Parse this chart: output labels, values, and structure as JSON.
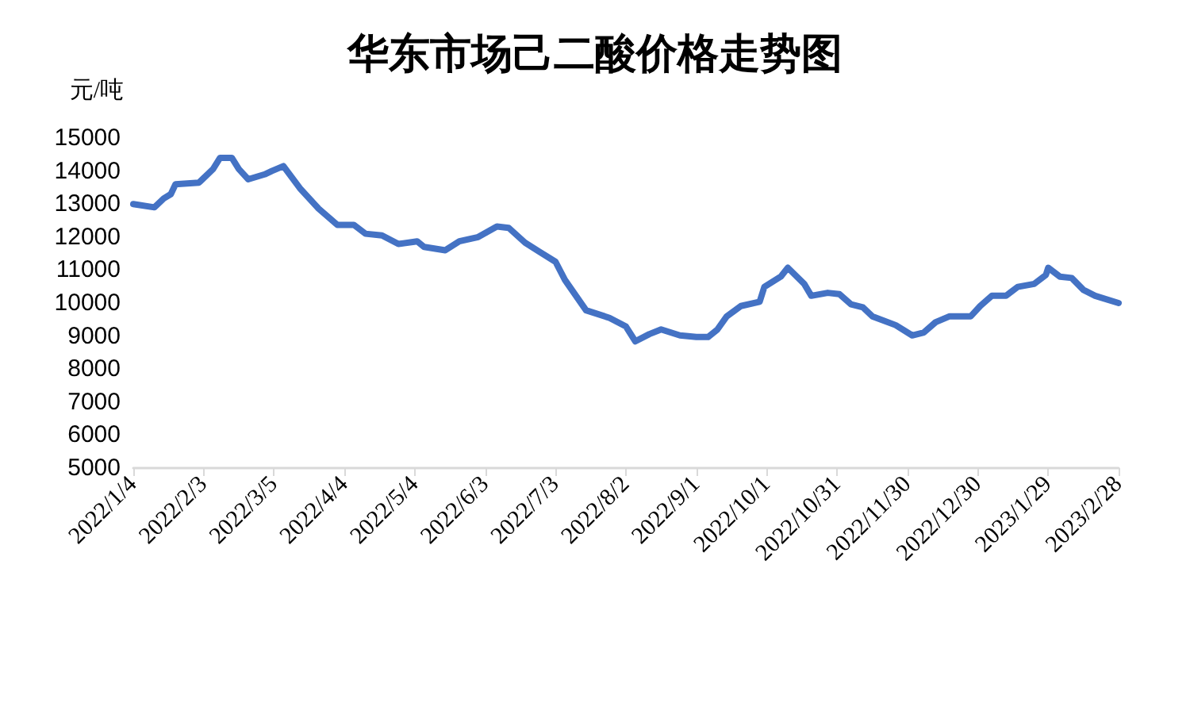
{
  "chart_data": {
    "type": "line",
    "title": "华东市场己二酸价格走势图",
    "ylabel": "元/吨",
    "x": [
      "2022-01-04",
      "2022-01-13",
      "2022-01-17",
      "2022-01-20",
      "2022-01-22",
      "2022-02-01",
      "2022-02-07",
      "2022-02-10",
      "2022-02-15",
      "2022-02-18",
      "2022-02-22",
      "2022-03-01",
      "2022-03-04",
      "2022-03-09",
      "2022-03-16",
      "2022-03-24",
      "2022-04-01",
      "2022-04-08",
      "2022-04-13",
      "2022-04-20",
      "2022-04-27",
      "2022-05-05",
      "2022-05-08",
      "2022-05-17",
      "2022-05-23",
      "2022-05-31",
      "2022-06-08",
      "2022-06-13",
      "2022-06-20",
      "2022-06-26",
      "2022-07-03",
      "2022-07-07",
      "2022-07-16",
      "2022-07-26",
      "2022-08-02",
      "2022-08-06",
      "2022-08-12",
      "2022-08-17",
      "2022-08-25",
      "2022-09-01",
      "2022-09-06",
      "2022-09-10",
      "2022-09-14",
      "2022-09-20",
      "2022-09-28",
      "2022-09-30",
      "2022-10-07",
      "2022-10-10",
      "2022-10-17",
      "2022-10-20",
      "2022-10-27",
      "2022-11-01",
      "2022-11-06",
      "2022-11-11",
      "2022-11-15",
      "2022-11-25",
      "2022-12-02",
      "2022-12-07",
      "2022-12-12",
      "2022-12-18",
      "2022-12-27",
      "2022-12-31",
      "2023-01-05",
      "2023-01-11",
      "2023-01-16",
      "2023-01-23",
      "2023-01-28",
      "2023-01-29",
      "2023-02-03",
      "2023-02-08",
      "2023-02-13",
      "2023-02-18",
      "2023-02-28"
    ],
    "series": [
      {
        "color": "#4472c4",
        "values": [
          13000,
          12900,
          13170,
          13300,
          13600,
          13650,
          14060,
          14400,
          14400,
          14060,
          13750,
          13900,
          14000,
          14150,
          13480,
          12860,
          12370,
          12370,
          12100,
          12050,
          11790,
          11870,
          11700,
          11600,
          11870,
          12000,
          12320,
          12280,
          11830,
          11560,
          11250,
          10700,
          9780,
          9550,
          9290,
          8840,
          9060,
          9200,
          9020,
          8970,
          8970,
          9200,
          9600,
          9910,
          10040,
          10490,
          10800,
          11070,
          10580,
          10220,
          10310,
          10270,
          9960,
          9870,
          9600,
          9330,
          9020,
          9110,
          9420,
          9600,
          9600,
          9910,
          10220,
          10220,
          10490,
          10580,
          10850,
          11070,
          10800,
          10760,
          10400,
          10220,
          10000
        ]
      }
    ],
    "xlim": [
      "2022-01-04",
      "2023-02-28"
    ],
    "xticks": [
      {
        "value": "2022-01-04",
        "label": "2022/1/4"
      },
      {
        "value": "2022-02-03",
        "label": "2022/2/3"
      },
      {
        "value": "2022-03-05",
        "label": "2022/3/5"
      },
      {
        "value": "2022-04-04",
        "label": "2022/4/4"
      },
      {
        "value": "2022-05-04",
        "label": "2022/5/4"
      },
      {
        "value": "2022-06-03",
        "label": "2022/6/3"
      },
      {
        "value": "2022-07-03",
        "label": "2022/7/3"
      },
      {
        "value": "2022-08-02",
        "label": "2022/8/2"
      },
      {
        "value": "2022-09-01",
        "label": "2022/9/1"
      },
      {
        "value": "2022-10-01",
        "label": "2022/10/1"
      },
      {
        "value": "2022-10-31",
        "label": "2022/10/31"
      },
      {
        "value": "2022-11-30",
        "label": "2022/11/30"
      },
      {
        "value": "2022-12-30",
        "label": "2022/12/30"
      },
      {
        "value": "2023-01-29",
        "label": "2023/1/29"
      },
      {
        "value": "2023-02-28",
        "label": "2023/2/28"
      }
    ],
    "ylim": [
      5000,
      15000
    ],
    "yticks": [
      5000,
      6000,
      7000,
      8000,
      9000,
      10000,
      11000,
      12000,
      13000,
      14000,
      15000
    ],
    "grid": false,
    "marker": "none",
    "line_style": "solid"
  }
}
